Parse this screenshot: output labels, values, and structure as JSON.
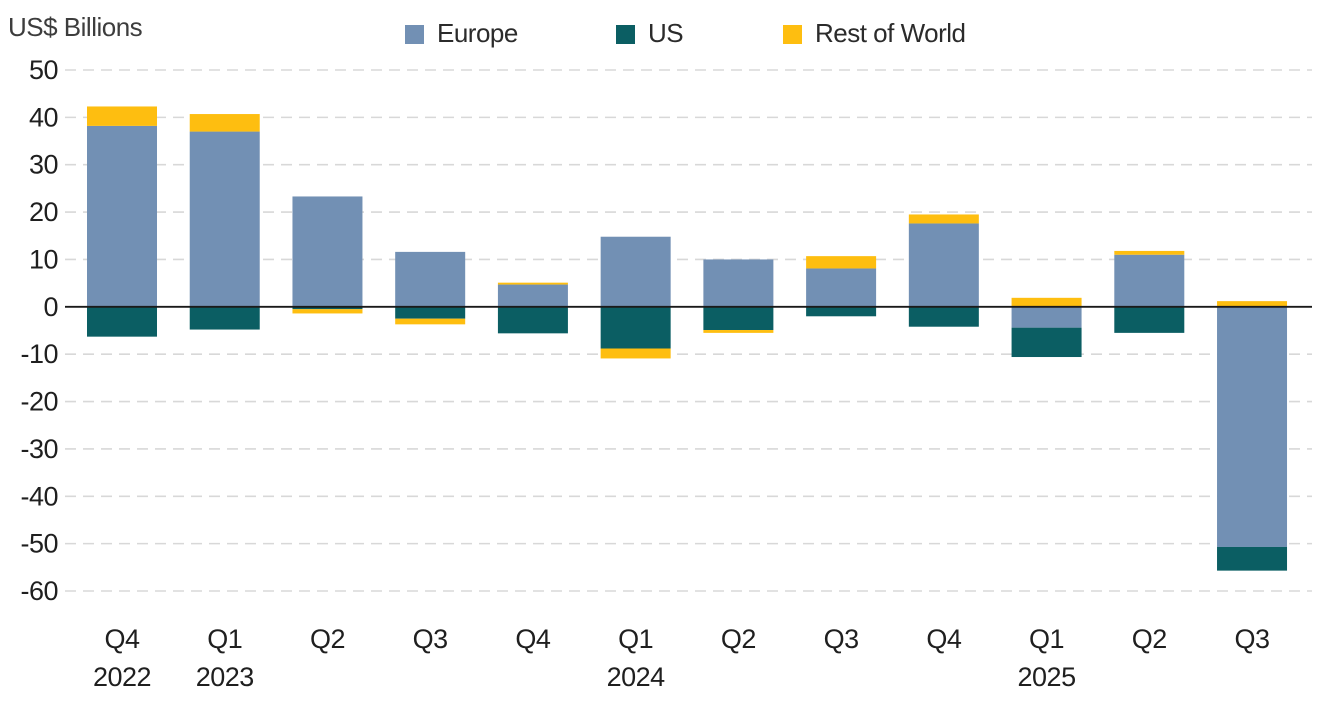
{
  "chart_data": {
    "type": "bar",
    "stacked": true,
    "title": "US$ Billions",
    "xlabel": "",
    "ylabel": "US$ Billions",
    "ylim": [
      -60,
      50
    ],
    "ytick_step": 10,
    "ytick_labels": [
      "50",
      "40",
      "30",
      "20",
      "10",
      "0",
      "-10",
      "-20",
      "-30",
      "-40",
      "-50",
      "-60"
    ],
    "grid": "dashed horizontal",
    "legend_position": "top",
    "categories": [
      {
        "quarter": "Q4",
        "year": "2022"
      },
      {
        "quarter": "Q1",
        "year": "2023"
      },
      {
        "quarter": "Q2",
        "year": ""
      },
      {
        "quarter": "Q3",
        "year": ""
      },
      {
        "quarter": "Q4",
        "year": ""
      },
      {
        "quarter": "Q1",
        "year": "2024"
      },
      {
        "quarter": "Q2",
        "year": ""
      },
      {
        "quarter": "Q3",
        "year": ""
      },
      {
        "quarter": "Q4",
        "year": ""
      },
      {
        "quarter": "Q1",
        "year": "2025"
      },
      {
        "quarter": "Q2",
        "year": ""
      },
      {
        "quarter": "Q3",
        "year": ""
      }
    ],
    "series": [
      {
        "name": "Europe",
        "color": "#7290B4",
        "values": [
          38.2,
          37.0,
          23.3,
          11.6,
          4.7,
          14.8,
          10.0,
          8.1,
          17.6,
          -4.4,
          11.0,
          -50.7
        ]
      },
      {
        "name": "US",
        "color": "#0B5E63",
        "values": [
          -6.3,
          -4.8,
          -0.5,
          -2.5,
          -5.6,
          -8.8,
          -4.9,
          -2.0,
          -4.2,
          -6.2,
          -5.5,
          -5.0
        ]
      },
      {
        "name": "Rest of World",
        "color": "#FEBE10",
        "values": [
          4.1,
          3.7,
          -0.9,
          -1.2,
          0.4,
          -2.1,
          -0.6,
          2.6,
          1.9,
          1.9,
          0.8,
          1.2
        ]
      }
    ],
    "colors": {
      "grid": "#D8D8D8",
      "zero_line": "#1A1A1A",
      "text": "#1F1F1F"
    }
  }
}
